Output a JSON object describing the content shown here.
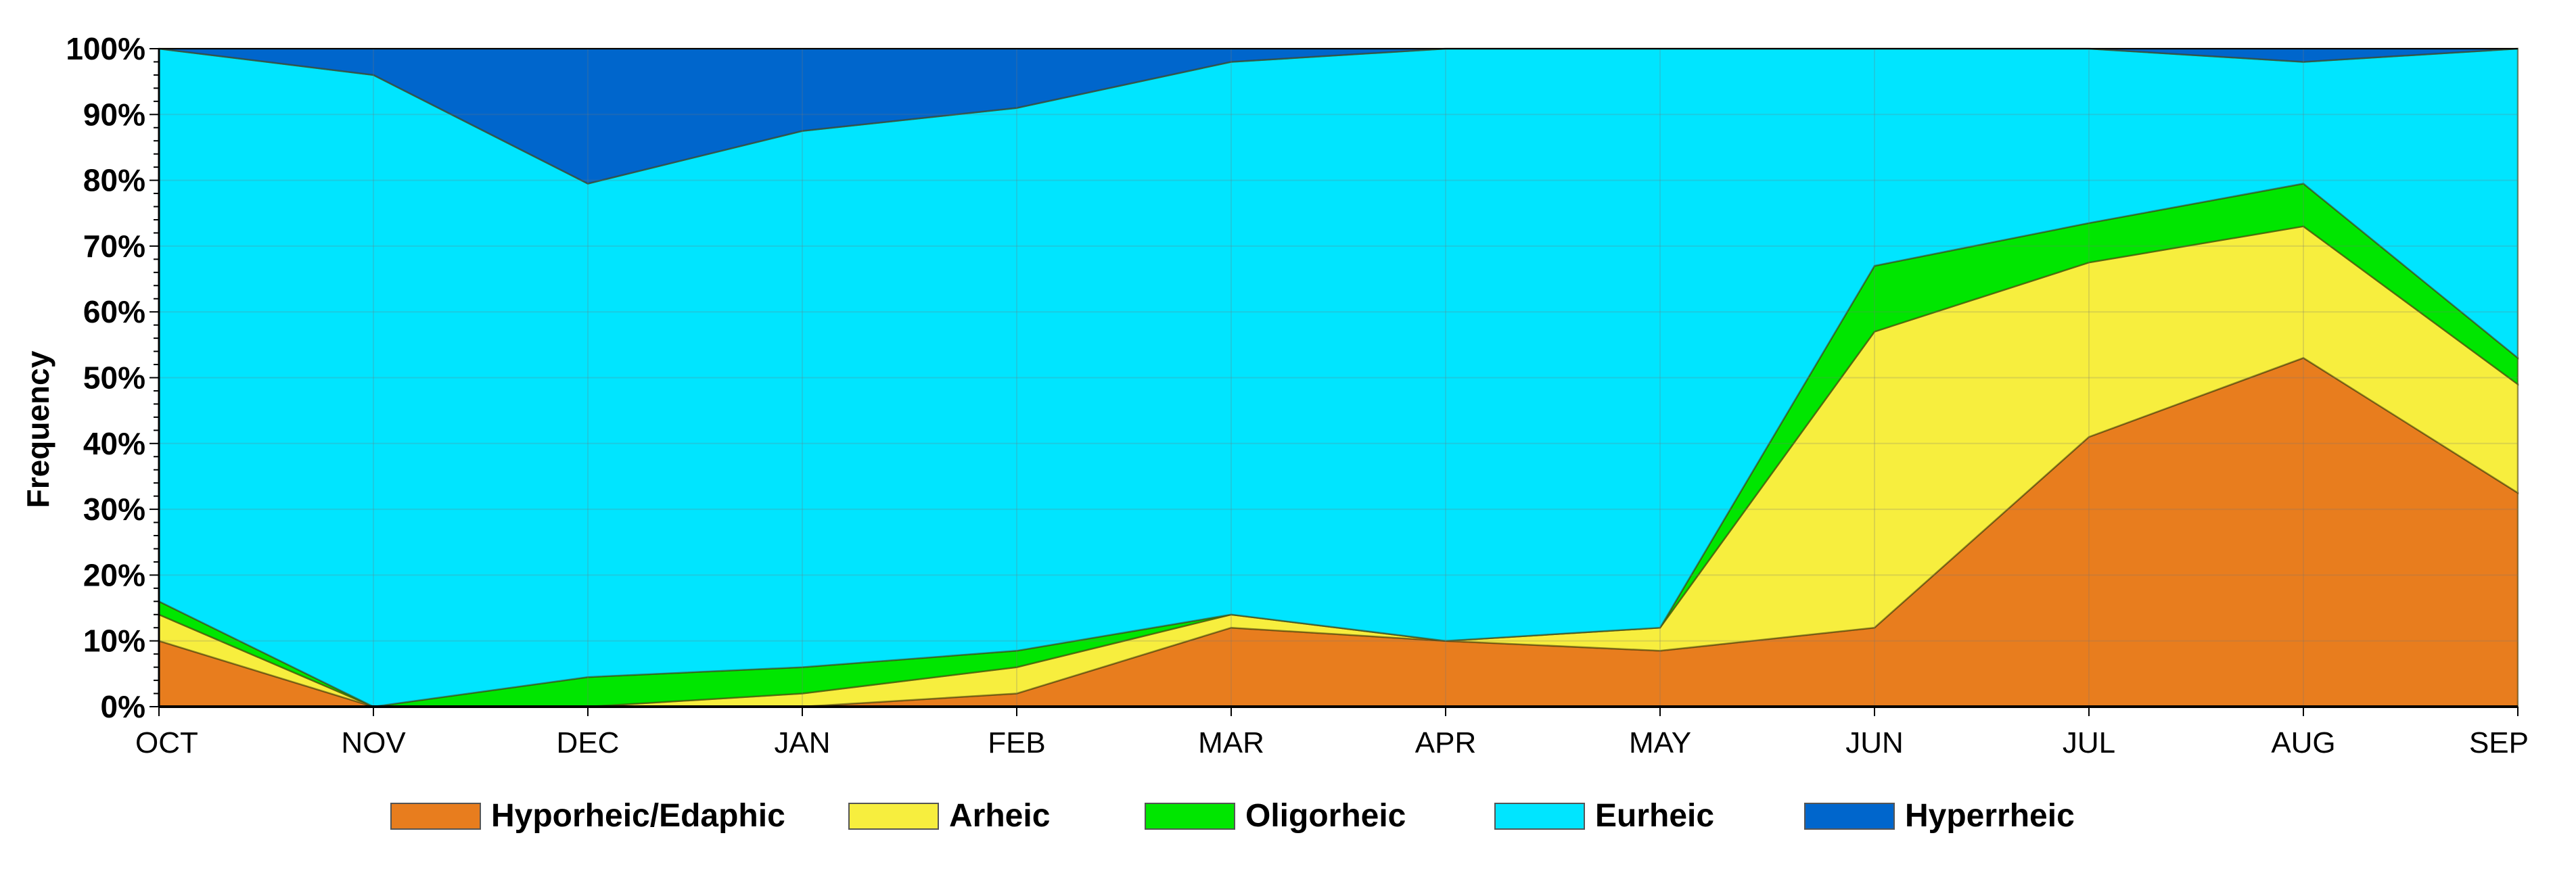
{
  "chart_data": {
    "type": "area",
    "stacked": true,
    "percent": true,
    "ylabel": "Frequency",
    "xlabel": "",
    "ylim": [
      0,
      100
    ],
    "yticks": [
      "0%",
      "10%",
      "20%",
      "30%",
      "40%",
      "50%",
      "60%",
      "70%",
      "80%",
      "90%",
      "100%"
    ],
    "categories": [
      "OCT",
      "NOV",
      "DEC",
      "JAN",
      "FEB",
      "MAR",
      "APR",
      "MAY",
      "JUN",
      "JUL",
      "AUG",
      "SEP"
    ],
    "grid": true,
    "legend_position": "bottom",
    "series": [
      {
        "name": "Hyporheic/Edaphic",
        "color": "#E87D1E",
        "values": [
          10,
          0,
          0,
          0,
          2,
          12,
          10,
          8.5,
          12,
          41,
          53,
          32.5
        ]
      },
      {
        "name": "Arheic",
        "color": "#F7EE3E",
        "values": [
          4,
          0,
          0,
          2,
          4,
          2,
          0,
          3.5,
          45,
          26.5,
          20,
          16.5
        ]
      },
      {
        "name": "Oligorheic",
        "color": "#00E600",
        "values": [
          2,
          0,
          4.5,
          4,
          2.5,
          0,
          0,
          0,
          10,
          6,
          6.5,
          4
        ]
      },
      {
        "name": "Eurheic",
        "color": "#00E5FF",
        "values": [
          84,
          96,
          75,
          81.5,
          82.5,
          84,
          90,
          88,
          33,
          26.5,
          18.5,
          47
        ]
      },
      {
        "name": "Hyperrheic",
        "color": "#0066CC",
        "values": [
          0,
          4,
          20.5,
          12.5,
          9,
          2,
          0,
          0,
          0,
          0,
          2,
          0
        ]
      }
    ]
  }
}
